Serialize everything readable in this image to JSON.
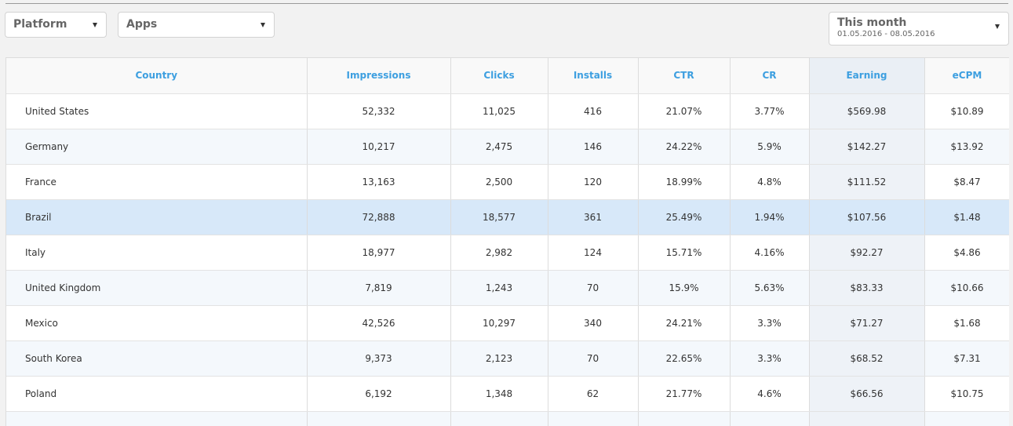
{
  "filters": {
    "platform": {
      "label": "Platform"
    },
    "apps": {
      "label": "Apps"
    },
    "date": {
      "label": "This month",
      "range": "01.05.2016 - 08.05.2016"
    }
  },
  "table": {
    "headers": [
      "Country",
      "Impressions",
      "Clicks",
      "Installs",
      "CTR",
      "CR",
      "Earning",
      "eCPM"
    ],
    "rows": [
      [
        "United States",
        "52,332",
        "11,025",
        "416",
        "21.07%",
        "3.77%",
        "$569.98",
        "$10.89"
      ],
      [
        "Germany",
        "10,217",
        "2,475",
        "146",
        "24.22%",
        "5.9%",
        "$142.27",
        "$13.92"
      ],
      [
        "France",
        "13,163",
        "2,500",
        "120",
        "18.99%",
        "4.8%",
        "$111.52",
        "$8.47"
      ],
      [
        "Brazil",
        "72,888",
        "18,577",
        "361",
        "25.49%",
        "1.94%",
        "$107.56",
        "$1.48"
      ],
      [
        "Italy",
        "18,977",
        "2,982",
        "124",
        "15.71%",
        "4.16%",
        "$92.27",
        "$4.86"
      ],
      [
        "United Kingdom",
        "7,819",
        "1,243",
        "70",
        "15.9%",
        "5.63%",
        "$83.33",
        "$10.66"
      ],
      [
        "Mexico",
        "42,526",
        "10,297",
        "340",
        "24.21%",
        "3.3%",
        "$71.27",
        "$1.68"
      ],
      [
        "South Korea",
        "9,373",
        "2,123",
        "70",
        "22.65%",
        "3.3%",
        "$68.52",
        "$7.31"
      ],
      [
        "Poland",
        "6,192",
        "1,348",
        "62",
        "21.77%",
        "4.6%",
        "$66.56",
        "$10.75"
      ]
    ]
  },
  "colors": {
    "accent": "#3d9fe0",
    "highlight_row": "#d7e8f9"
  }
}
